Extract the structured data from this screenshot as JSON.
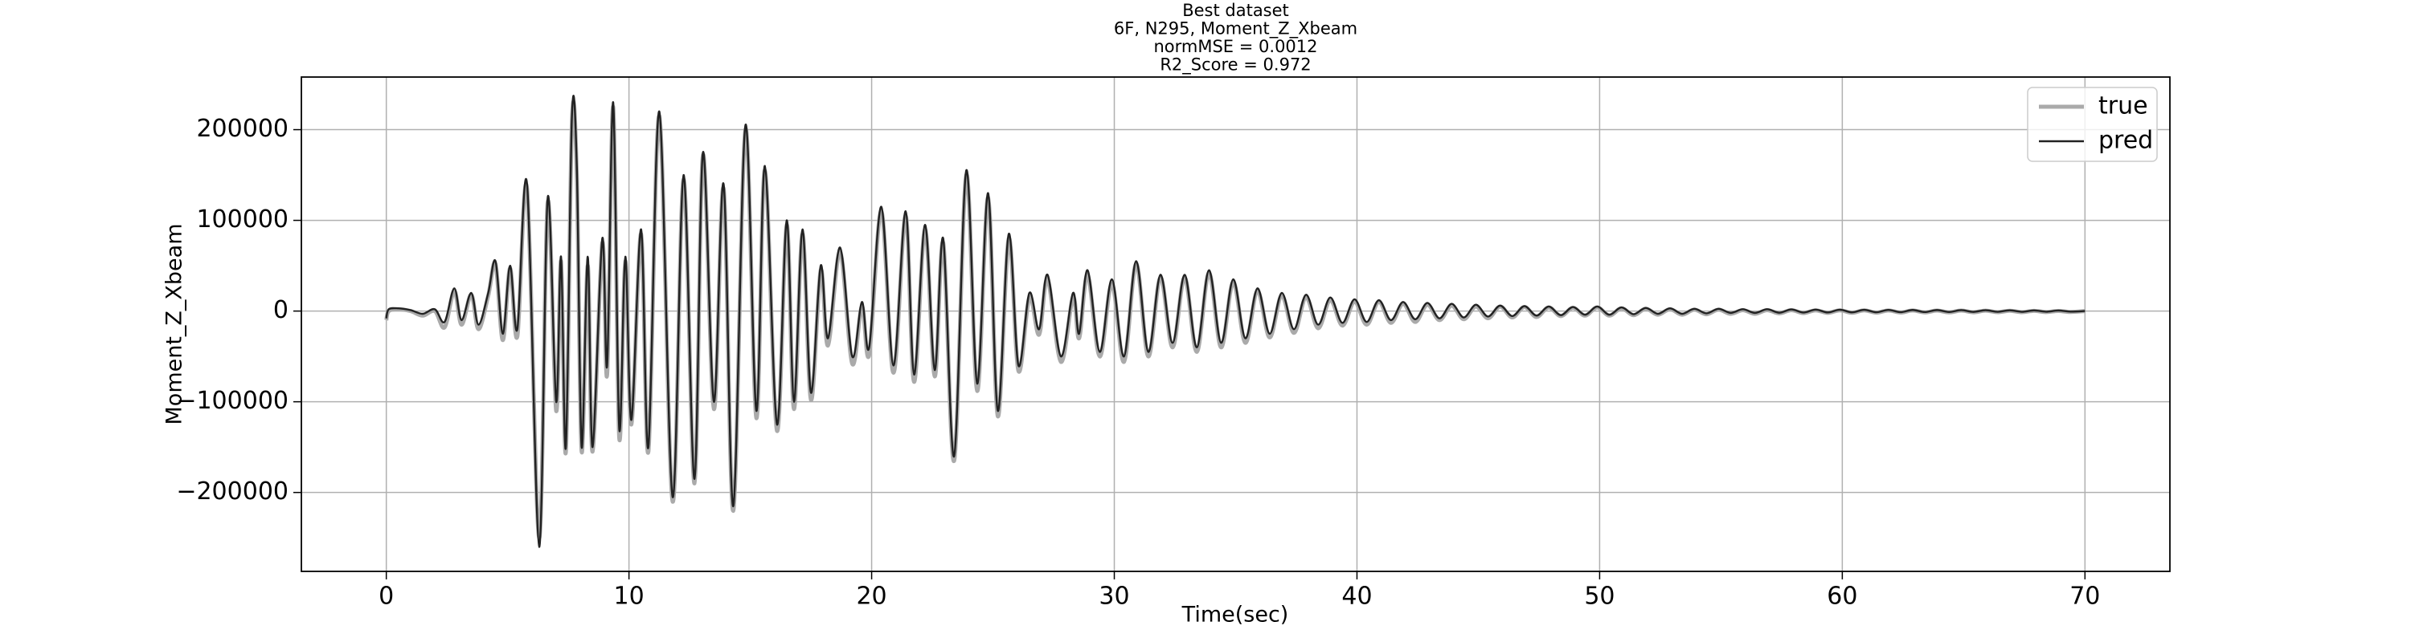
{
  "chart_data": {
    "type": "line",
    "title": [
      "Best dataset",
      "6F, N295, Moment_Z_Xbeam",
      "normMSE = 0.0012",
      "R2_Score = 0.972"
    ],
    "xlabel": "Time(sec)",
    "ylabel": "Moment_Z_Xbeam",
    "xlim": [
      -3.5,
      73.5
    ],
    "xticks": [
      0,
      10,
      20,
      30,
      40,
      50,
      60,
      70
    ],
    "ylim": [
      -287000,
      258000
    ],
    "yticks": [
      {
        "value": -200000,
        "label": "−200000"
      },
      {
        "value": -100000,
        "label": "−100000"
      },
      0,
      100000,
      200000
    ],
    "grid": true,
    "legend": "upper right",
    "x": [
      0,
      0.1,
      0.5,
      1,
      1.5,
      2,
      2.4,
      2.8,
      3.1,
      3.5,
      3.8,
      4.2,
      4.5,
      4.8,
      5.1,
      5.4,
      5.8,
      6.3,
      6.65,
      7.0,
      7.2,
      7.4,
      7.65,
      7.85,
      8.05,
      8.3,
      8.5,
      8.9,
      9.1,
      9.35,
      9.6,
      9.85,
      10.1,
      10.5,
      10.8,
      11.25,
      11.8,
      12.25,
      12.7,
      13.05,
      13.5,
      13.9,
      14.3,
      14.8,
      15.25,
      15.6,
      16.1,
      16.5,
      16.8,
      17.15,
      17.5,
      17.9,
      18.2,
      18.7,
      19.2,
      19.6,
      19.9,
      20.4,
      20.9,
      21.4,
      21.75,
      22.2,
      22.6,
      22.95,
      23.4,
      23.9,
      24.35,
      24.8,
      25.2,
      25.65,
      26.05,
      26.5,
      26.9,
      27.25,
      27.8,
      28.3,
      28.55,
      28.9,
      29.4,
      29.9,
      30.4,
      30.9,
      31.4,
      31.9,
      32.4,
      32.9,
      33.4,
      33.9,
      34.4,
      34.9,
      35.4,
      35.9,
      36.4,
      36.9,
      37.4,
      37.9,
      38.4,
      38.9,
      39.4,
      39.9,
      40.4,
      40.9,
      41.4,
      41.9,
      42.4,
      42.9,
      43.4,
      43.9,
      44.4,
      44.9,
      45.4,
      45.9,
      46.4,
      46.9,
      47.4,
      47.9,
      48.4,
      48.9,
      49.4,
      49.9,
      50.4,
      50.9,
      51.4,
      51.9,
      52.4,
      52.9,
      53.4,
      53.9,
      54.4,
      54.9,
      55.4,
      55.9,
      56.4,
      56.9,
      57.4,
      57.9,
      58.4,
      58.9,
      59.4,
      59.9,
      60.4,
      60.9,
      61.4,
      61.9,
      62.4,
      62.9,
      63.4,
      63.9,
      64.4,
      64.9,
      65.4,
      65.9,
      66.4,
      66.9,
      67.4,
      67.9,
      68.4,
      68.9,
      69.4,
      70
    ],
    "series": [
      {
        "name": "true",
        "color": "#aaaaaa",
        "values": [
          -10000,
          0,
          2000,
          0,
          -5000,
          0,
          -18000,
          22000,
          -15000,
          18000,
          -20000,
          17000,
          52000,
          -32000,
          47000,
          -28000,
          135000,
          -250000,
          120000,
          -110000,
          55000,
          -155000,
          210000,
          150000,
          -155000,
          50000,
          -155000,
          75000,
          -70000,
          225000,
          -140000,
          55000,
          -125000,
          85000,
          -155000,
          215000,
          -210000,
          145000,
          -190000,
          172000,
          -108000,
          135000,
          -220000,
          200000,
          -118000,
          155000,
          -132000,
          95000,
          -108000,
          85000,
          -98000,
          45000,
          -38000,
          65000,
          -58000,
          5000,
          -48000,
          110000,
          -68000,
          105000,
          -78000,
          90000,
          -72000,
          75000,
          -165000,
          150000,
          -88000,
          125000,
          -116000,
          80000,
          -66000,
          15000,
          -26000,
          35000,
          -56000,
          15000,
          -30000,
          40000,
          -50000,
          30000,
          -56000,
          52000,
          -50000,
          37000,
          -40000,
          37000,
          -45000,
          42000,
          -40000,
          32000,
          -35000,
          22000,
          -29000,
          17000,
          -24000,
          15000,
          -19000,
          12000,
          -16000,
          10000,
          -15000,
          10000,
          -13000,
          8000,
          -12000,
          7000,
          -10000,
          6000,
          -9000,
          5000,
          -8000,
          5000,
          -7000,
          4500,
          -6500,
          4000,
          -5500,
          3500,
          -5000,
          4000,
          -5000,
          3000,
          -4500,
          2500,
          -4000,
          2000,
          -4000,
          1500,
          -3500,
          1500,
          -3000,
          1000,
          -3000,
          1000,
          -2500,
          1000,
          -2200,
          800,
          -2000,
          800,
          -1900,
          800,
          -1700,
          700,
          -1600,
          600,
          -1500,
          500,
          -1400,
          500,
          -1300,
          400,
          -1200,
          300,
          -1200,
          200,
          -1100,
          100,
          -1000,
          0
        ]
      },
      {
        "name": "pred",
        "color": "#222222",
        "values": [
          -8000,
          2000,
          3000,
          1000,
          -3000,
          2000,
          -12000,
          25000,
          -10000,
          20000,
          -15000,
          20000,
          55000,
          -25000,
          50000,
          -20000,
          140000,
          -260000,
          125000,
          -100000,
          60000,
          -150000,
          215000,
          160000,
          -150000,
          60000,
          -150000,
          80000,
          -60000,
          230000,
          -130000,
          60000,
          -120000,
          90000,
          -150000,
          220000,
          -205000,
          150000,
          -185000,
          175000,
          -100000,
          140000,
          -215000,
          205000,
          -110000,
          160000,
          -125000,
          100000,
          -100000,
          90000,
          -90000,
          50000,
          -30000,
          70000,
          -50000,
          10000,
          -40000,
          115000,
          -60000,
          110000,
          -70000,
          95000,
          -65000,
          80000,
          -160000,
          155000,
          -80000,
          130000,
          -110000,
          85000,
          -60000,
          20000,
          -20000,
          40000,
          -50000,
          20000,
          -25000,
          45000,
          -45000,
          35000,
          -50000,
          55000,
          -45000,
          40000,
          -35000,
          40000,
          -40000,
          45000,
          -35000,
          35000,
          -30000,
          25000,
          -25000,
          20000,
          -20000,
          18000,
          -15000,
          15000,
          -13000,
          13000,
          -12000,
          12000,
          -10000,
          10000,
          -9000,
          9000,
          -8000,
          8000,
          -7000,
          7000,
          -6000,
          6000,
          -5500,
          5500,
          -5000,
          5000,
          -4500,
          4500,
          -4000,
          5000,
          -4000,
          4000,
          -3500,
          3500,
          -3000,
          3000,
          -3000,
          2500,
          -2500,
          2500,
          -2000,
          2000,
          -2000,
          2000,
          -1800,
          1800,
          -1600,
          1600,
          -1500,
          1500,
          -1400,
          1400,
          -1300,
          1300,
          -1200,
          1200,
          -1100,
          1100,
          -1000,
          1000,
          -900,
          900,
          -800,
          800,
          -800,
          700,
          -700,
          600,
          -600,
          0
        ]
      }
    ]
  }
}
